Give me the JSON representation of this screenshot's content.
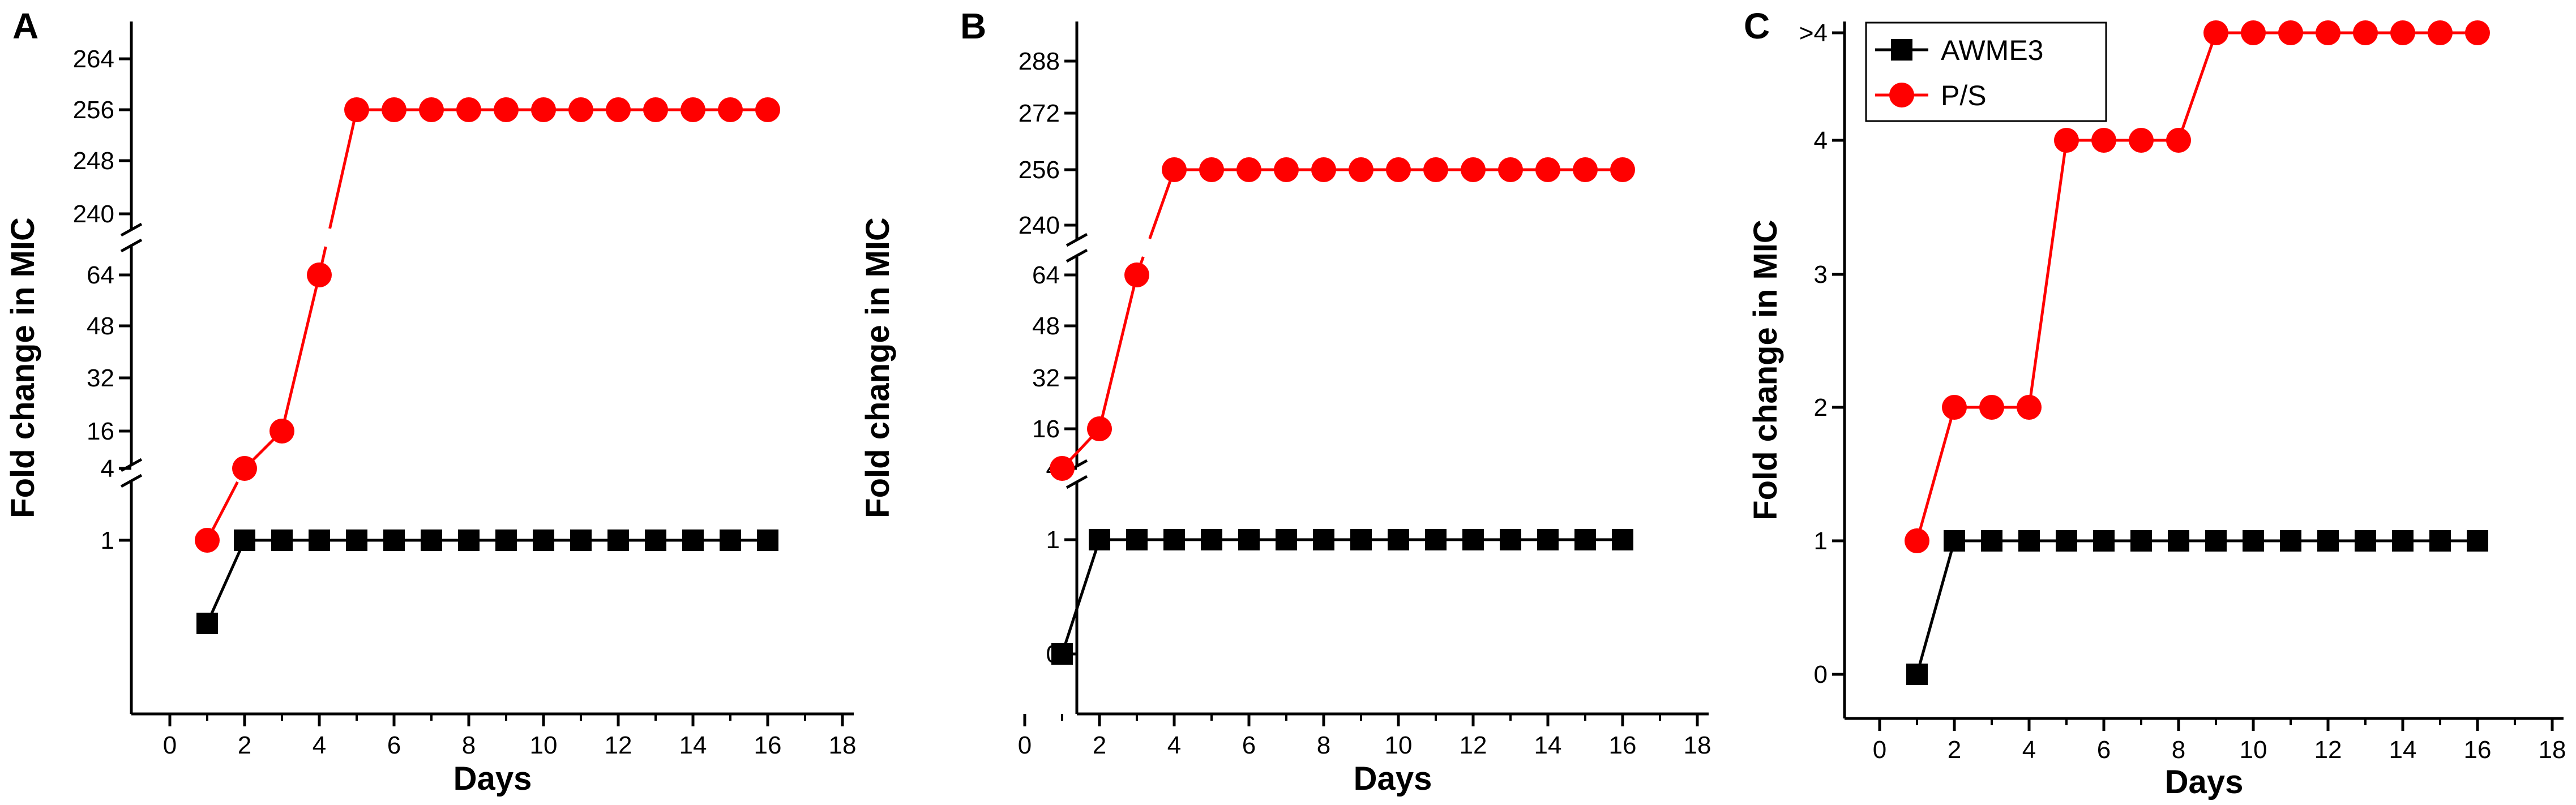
{
  "colors": {
    "awme3": "#000000",
    "ps": "#ff0000"
  },
  "legend": [
    {
      "name": "AWME3",
      "color": "#000000",
      "marker": "square"
    },
    {
      "name": "P/S",
      "color": "#ff0000",
      "marker": "circle"
    }
  ],
  "chart_data": [
    {
      "type": "line",
      "panel": "A",
      "xlabel": "Days",
      "ylabel": "Fold change in MIC",
      "xlim": [
        -1,
        18
      ],
      "xticks": [
        0,
        2,
        4,
        6,
        8,
        10,
        12,
        14,
        16,
        18
      ],
      "y_axis_broken": true,
      "yticks": [
        "1",
        "4",
        "16",
        "32",
        "48",
        "64",
        "240",
        "248",
        "256",
        "264"
      ],
      "series": [
        {
          "name": "AWME3",
          "x": [
            1,
            2,
            3,
            4,
            5,
            6,
            7,
            8,
            9,
            10,
            11,
            12,
            13,
            14,
            15,
            16
          ],
          "values": [
            0.5,
            1,
            1,
            1,
            1,
            1,
            1,
            1,
            1,
            1,
            1,
            1,
            1,
            1,
            1,
            1
          ]
        },
        {
          "name": "P/S",
          "x": [
            1,
            2,
            3,
            4,
            5,
            6,
            7,
            8,
            9,
            10,
            11,
            12,
            13,
            14,
            15,
            16
          ],
          "values": [
            1,
            4,
            16,
            64,
            256,
            256,
            256,
            256,
            256,
            256,
            256,
            256,
            256,
            256,
            256,
            256
          ]
        }
      ]
    },
    {
      "type": "line",
      "panel": "B",
      "xlabel": "Days",
      "ylabel": "Fold change in MIC",
      "xlim": [
        -1,
        18
      ],
      "xticks": [
        0,
        2,
        4,
        6,
        8,
        10,
        12,
        14,
        16,
        18
      ],
      "y_axis_broken": true,
      "yticks": [
        "0",
        "1",
        "4",
        "16",
        "32",
        "48",
        "64",
        "240",
        "256",
        "272",
        "288"
      ],
      "series": [
        {
          "name": "AWME3",
          "x": [
            1,
            2,
            3,
            4,
            5,
            6,
            7,
            8,
            9,
            10,
            11,
            12,
            13,
            14,
            15,
            16
          ],
          "values": [
            0,
            1,
            1,
            1,
            1,
            1,
            1,
            1,
            1,
            1,
            1,
            1,
            1,
            1,
            1,
            1
          ]
        },
        {
          "name": "P/S",
          "x": [
            1,
            2,
            3,
            4,
            5,
            6,
            7,
            8,
            9,
            10,
            11,
            12,
            13,
            14,
            15,
            16
          ],
          "values": [
            4,
            16,
            64,
            256,
            256,
            256,
            256,
            256,
            256,
            256,
            256,
            256,
            256,
            256,
            256,
            256
          ]
        }
      ]
    },
    {
      "type": "line",
      "panel": "C",
      "xlabel": "Days",
      "ylabel": "Fold change in MIC",
      "xlim": [
        -1,
        18
      ],
      "xticks": [
        0,
        2,
        4,
        6,
        8,
        10,
        12,
        14,
        16,
        18
      ],
      "ylim": [
        -0.2,
        4.4
      ],
      "yticks": [
        "0",
        "1",
        "2",
        "3",
        "4",
        ">4"
      ],
      "legend_position": "top-left",
      "series": [
        {
          "name": "AWME3",
          "x": [
            1,
            2,
            3,
            4,
            5,
            6,
            7,
            8,
            9,
            10,
            11,
            12,
            13,
            14,
            15,
            16
          ],
          "values": [
            0,
            1,
            1,
            1,
            1,
            1,
            1,
            1,
            1,
            1,
            1,
            1,
            1,
            1,
            1,
            1
          ]
        },
        {
          "name": "P/S",
          "x": [
            1,
            2,
            3,
            4,
            5,
            6,
            7,
            8,
            9,
            10,
            11,
            12,
            13,
            14,
            15,
            16
          ],
          "values": [
            1,
            2,
            2,
            2,
            4,
            4,
            4,
            4,
            ">4",
            ">4",
            ">4",
            ">4",
            ">4",
            ">4",
            ">4",
            ">4"
          ]
        }
      ]
    }
  ]
}
